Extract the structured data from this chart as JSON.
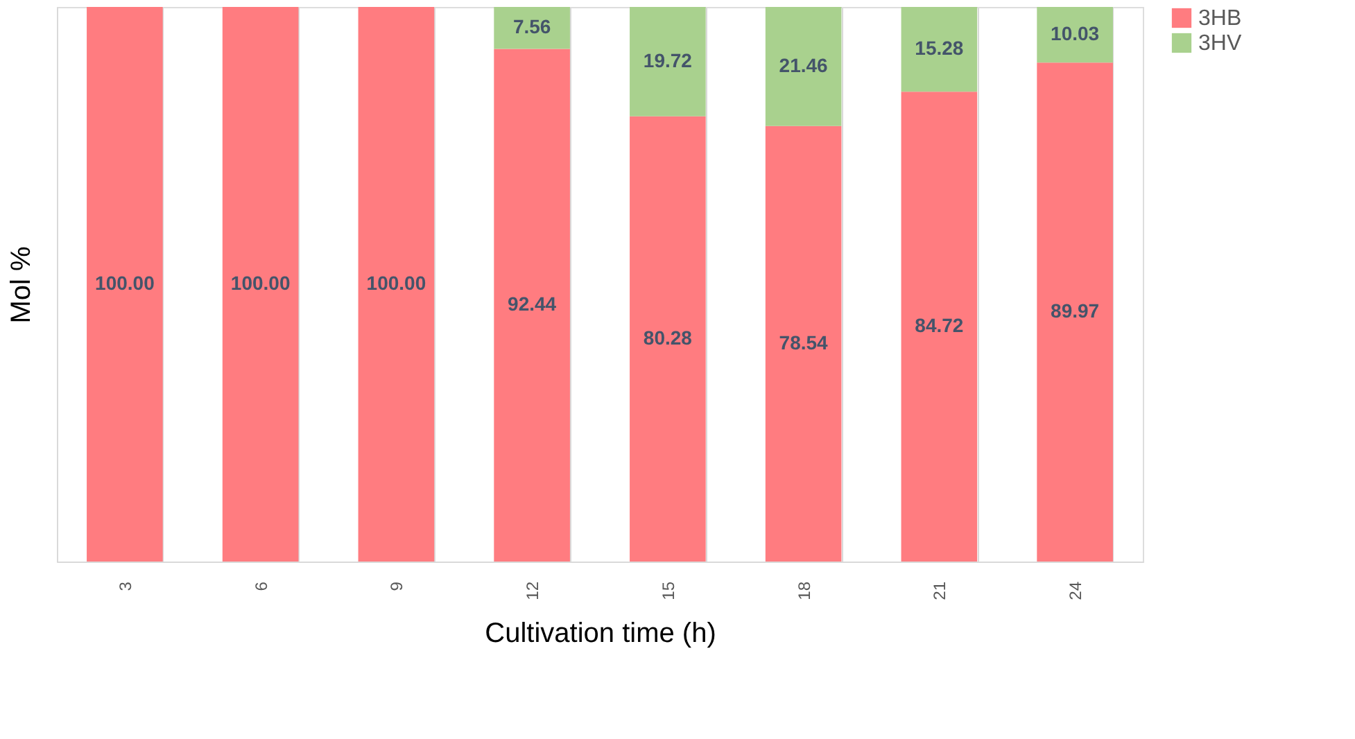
{
  "chart_data": {
    "type": "bar",
    "stacked": true,
    "xlabel": "Cultivation time (h)",
    "ylabel": "Mol %",
    "categories": [
      "3",
      "6",
      "9",
      "12",
      "15",
      "18",
      "21",
      "24"
    ],
    "ylim": [
      0,
      100
    ],
    "grid": "x",
    "legend": "right",
    "tick_labels": "x",
    "series": [
      {
        "name": "3HB",
        "color": "#ff7c80",
        "values": [
          100.0,
          100.0,
          100.0,
          92.44,
          80.28,
          78.54,
          84.72,
          89.97
        ],
        "value_labels": [
          "100.00",
          "100.00",
          "100.00",
          "92.44",
          "80.28",
          "78.54",
          "84.72",
          "89.97"
        ]
      },
      {
        "name": "3HV",
        "color": "#a9d18e",
        "values": [
          null,
          null,
          null,
          7.56,
          19.72,
          21.46,
          15.28,
          10.03
        ],
        "value_labels": [
          null,
          null,
          null,
          "7.56",
          "19.72",
          "21.46",
          "15.28",
          "10.03"
        ]
      }
    ]
  }
}
